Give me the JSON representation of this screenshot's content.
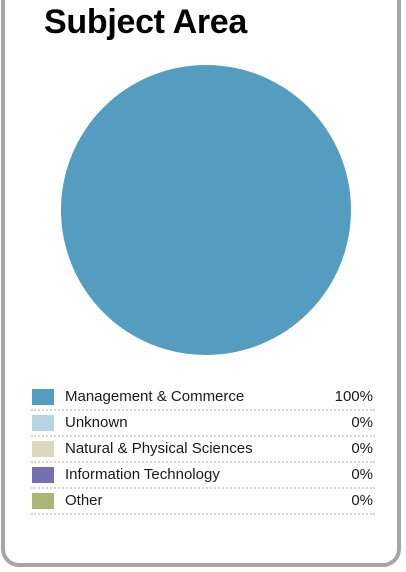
{
  "chart_data": {
    "type": "pie",
    "title": "Subject Area",
    "categories": [
      "Management & Commerce",
      "Unknown",
      "Natural & Physical Sciences",
      "Information Technology",
      "Other"
    ],
    "values": [
      100,
      0,
      0,
      0,
      0
    ],
    "value_labels": [
      "100%",
      "0%",
      "0%",
      "0%",
      "0%"
    ],
    "colors": [
      "#549cc0",
      "#b3d6e2",
      "#ddd8bd",
      "#7571ae",
      "#a9b676"
    ],
    "legend_position": "bottom"
  }
}
